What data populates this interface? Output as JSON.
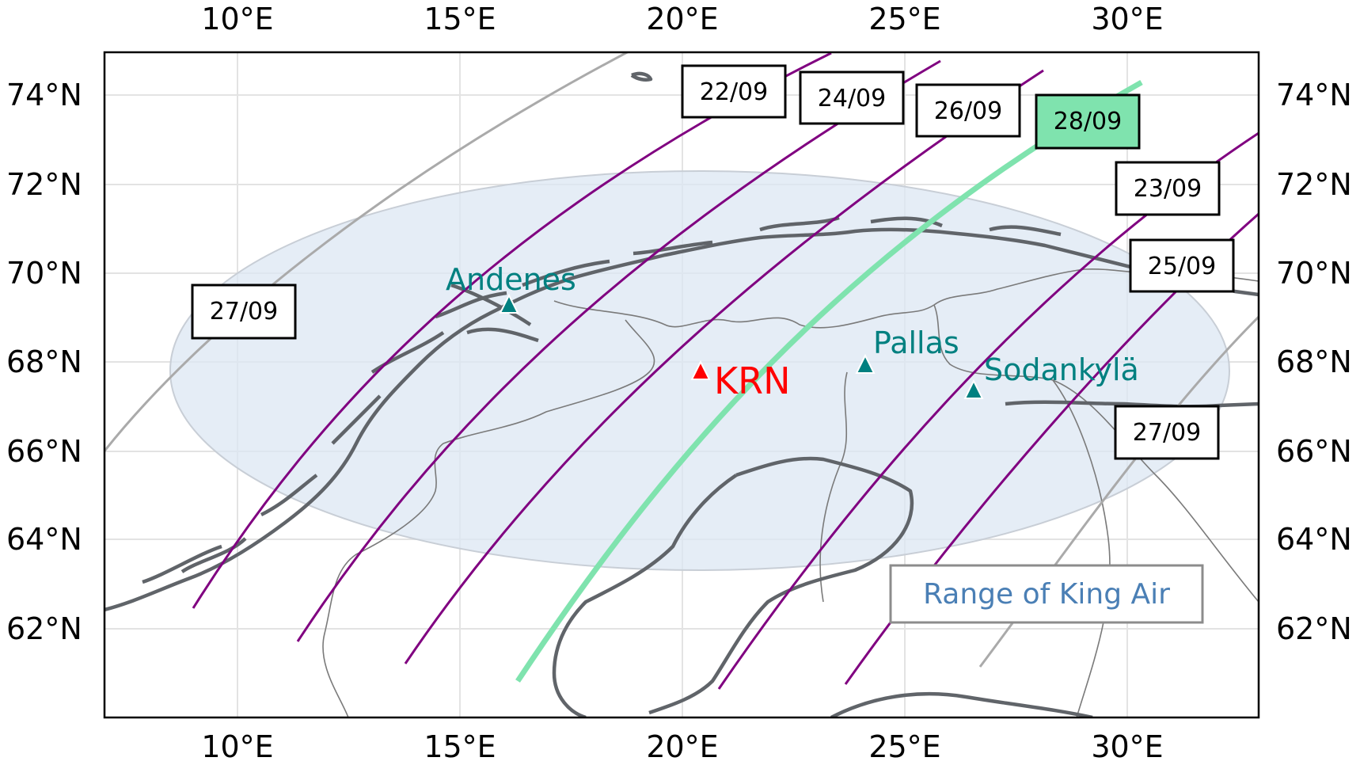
{
  "axes": {
    "x_ticks": [
      "10°E",
      "15°E",
      "20°E",
      "25°E",
      "30°E"
    ],
    "y_ticks": [
      "74°N",
      "72°N",
      "70°N",
      "68°N",
      "66°N",
      "64°N",
      "62°N"
    ]
  },
  "stations": [
    {
      "name": "Andenes",
      "color": "#008080"
    },
    {
      "name": "Pallas",
      "color": "#008080"
    },
    {
      "name": "Sodankylä",
      "color": "#008080"
    },
    {
      "name": "KRN",
      "color": "#ff0000"
    }
  ],
  "track_labels": [
    "22/09",
    "24/09",
    "26/09",
    "28/09",
    "23/09",
    "25/09",
    "27/09",
    "27/09"
  ],
  "range_label": "Range of King Air",
  "colors": {
    "track": "#800080",
    "highlight_track": "#7fe3ae",
    "range_fill": "#dce7f3",
    "coast": "#606469",
    "border": "#7a7a7a",
    "other_track": "#aaaaaa",
    "range_text": "#4a7fb5"
  }
}
